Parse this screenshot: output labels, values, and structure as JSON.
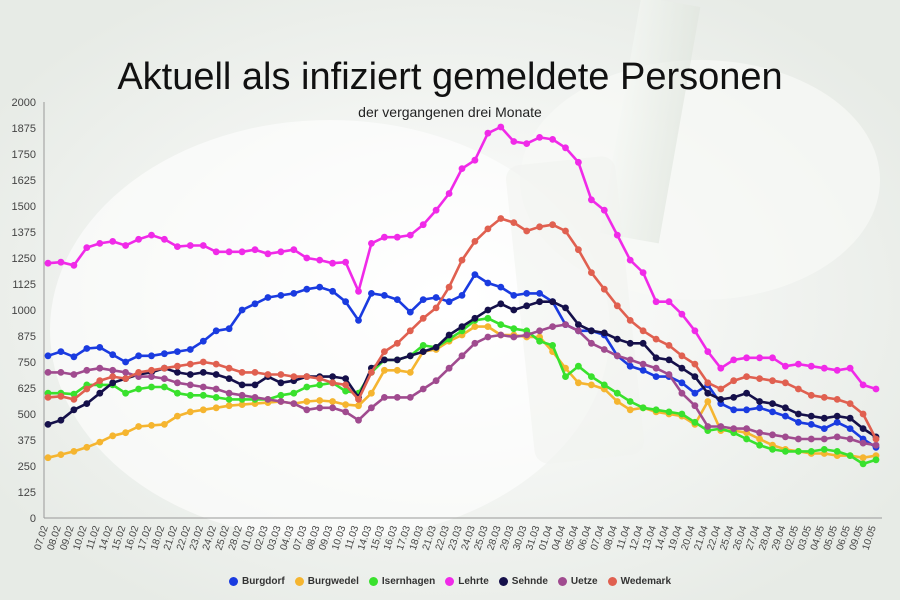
{
  "chart_data": {
    "type": "line",
    "title": "Aktuell als infiziert gemeldete Personen",
    "subtitle": "der vergangenen drei Monate",
    "xlabel": "",
    "ylabel": "",
    "ylim": [
      0,
      2000
    ],
    "yticks": [
      0,
      125,
      250,
      375,
      500,
      625,
      750,
      875,
      1000,
      1125,
      1250,
      1375,
      1500,
      1625,
      1750,
      1875,
      2000
    ],
    "grid": false,
    "legend_position": "bottom",
    "x_tick_labels": [
      "07.02",
      "08.02",
      "09.02",
      "10.02",
      "11.02",
      "14.02",
      "15.02",
      "16.02",
      "17.02",
      "18.02",
      "21.02",
      "22.02",
      "23.02",
      "24.02",
      "25.02",
      "28.02",
      "01.03",
      "02.03",
      "03.03",
      "04.03",
      "07.03",
      "08.03",
      "09.03",
      "10.03",
      "11.03",
      "14.03",
      "15.03",
      "16.03",
      "17.03",
      "18.03",
      "21.03",
      "22.03",
      "23.03",
      "24.03",
      "25.03",
      "28.03",
      "29.03",
      "30.03",
      "31.03",
      "01.04",
      "04.04",
      "05.04",
      "06.04",
      "07.04",
      "08.04",
      "11.04",
      "12.04",
      "13.04",
      "14.04",
      "19.04",
      "20.04",
      "21.04",
      "22.04",
      "25.04",
      "26.04",
      "27.04",
      "28.04",
      "29.04",
      "02.05",
      "03.05",
      "04.05",
      "05.05",
      "06.05",
      "09.05",
      "10.05"
    ],
    "series": [
      {
        "name": "Burgdorf",
        "color": "#1a3be0",
        "values": [
          780,
          800,
          775,
          815,
          820,
          785,
          750,
          780,
          780,
          790,
          800,
          810,
          850,
          900,
          910,
          1000,
          1030,
          1060,
          1070,
          1080,
          1100,
          1110,
          1090,
          1040,
          950,
          1080,
          1070,
          1050,
          990,
          1050,
          1060,
          1040,
          1070,
          1170,
          1130,
          1110,
          1070,
          1080,
          1080,
          1040,
          930,
          900,
          900,
          880,
          780,
          730,
          710,
          680,
          680,
          650,
          600,
          640,
          550,
          520,
          520,
          530,
          510,
          490,
          460,
          450,
          430,
          460,
          430,
          380,
          340
        ]
      },
      {
        "name": "Burgwedel",
        "color": "#f5b530",
        "values": [
          290,
          305,
          320,
          340,
          365,
          395,
          410,
          440,
          445,
          450,
          490,
          510,
          520,
          530,
          540,
          545,
          550,
          555,
          560,
          550,
          560,
          565,
          560,
          545,
          540,
          600,
          710,
          710,
          700,
          800,
          810,
          850,
          880,
          920,
          920,
          880,
          880,
          870,
          870,
          800,
          720,
          650,
          640,
          620,
          560,
          520,
          530,
          510,
          500,
          490,
          450,
          560,
          420,
          420,
          410,
          380,
          350,
          330,
          320,
          310,
          310,
          300,
          300,
          290,
          300
        ]
      },
      {
        "name": "Isernhagen",
        "color": "#39e12d",
        "values": [
          600,
          600,
          595,
          640,
          640,
          640,
          600,
          620,
          630,
          630,
          600,
          590,
          590,
          580,
          570,
          570,
          570,
          570,
          590,
          600,
          630,
          640,
          650,
          610,
          600,
          700,
          760,
          760,
          780,
          830,
          820,
          860,
          900,
          950,
          960,
          930,
          910,
          900,
          850,
          830,
          680,
          730,
          680,
          640,
          600,
          560,
          530,
          520,
          510,
          500,
          460,
          420,
          430,
          410,
          380,
          350,
          330,
          320,
          320,
          320,
          330,
          320,
          300,
          260,
          280
        ]
      },
      {
        "name": "Lehrte",
        "color": "#f02ae8",
        "values": [
          1225,
          1230,
          1215,
          1300,
          1320,
          1330,
          1310,
          1340,
          1360,
          1340,
          1305,
          1310,
          1310,
          1280,
          1280,
          1280,
          1290,
          1270,
          1280,
          1290,
          1250,
          1240,
          1225,
          1230,
          1090,
          1320,
          1350,
          1350,
          1360,
          1410,
          1480,
          1560,
          1680,
          1720,
          1850,
          1880,
          1810,
          1800,
          1830,
          1820,
          1780,
          1710,
          1530,
          1480,
          1360,
          1240,
          1180,
          1040,
          1040,
          980,
          900,
          800,
          720,
          760,
          770,
          770,
          770,
          730,
          740,
          730,
          720,
          710,
          720,
          640,
          620
        ]
      },
      {
        "name": "Sehnde",
        "color": "#15104a",
        "values": [
          450,
          470,
          520,
          550,
          600,
          650,
          670,
          690,
          700,
          720,
          700,
          690,
          700,
          690,
          670,
          640,
          640,
          680,
          650,
          660,
          680,
          680,
          680,
          670,
          580,
          720,
          760,
          760,
          780,
          800,
          820,
          880,
          920,
          960,
          1000,
          1030,
          1000,
          1020,
          1040,
          1040,
          1010,
          930,
          900,
          890,
          860,
          840,
          840,
          770,
          760,
          720,
          680,
          600,
          570,
          580,
          600,
          560,
          550,
          530,
          500,
          490,
          480,
          490,
          480,
          430,
          390
        ]
      },
      {
        "name": "Uetze",
        "color": "#a04b8f",
        "values": [
          700,
          700,
          690,
          710,
          720,
          710,
          700,
          680,
          680,
          670,
          650,
          640,
          630,
          620,
          600,
          590,
          580,
          570,
          560,
          550,
          520,
          530,
          530,
          510,
          470,
          530,
          580,
          580,
          580,
          620,
          660,
          720,
          780,
          840,
          870,
          880,
          870,
          880,
          900,
          920,
          930,
          900,
          840,
          810,
          780,
          760,
          740,
          720,
          690,
          600,
          540,
          440,
          440,
          430,
          430,
          410,
          400,
          390,
          380,
          380,
          380,
          390,
          380,
          360,
          350
        ]
      },
      {
        "name": "Wedemark",
        "color": "#e06050",
        "values": [
          580,
          585,
          570,
          620,
          660,
          680,
          670,
          700,
          710,
          720,
          730,
          740,
          750,
          740,
          720,
          700,
          700,
          690,
          690,
          680,
          680,
          670,
          650,
          640,
          570,
          700,
          800,
          840,
          900,
          960,
          1010,
          1110,
          1240,
          1330,
          1390,
          1440,
          1420,
          1380,
          1400,
          1410,
          1380,
          1290,
          1180,
          1100,
          1020,
          950,
          900,
          860,
          830,
          780,
          740,
          650,
          620,
          660,
          680,
          670,
          660,
          650,
          620,
          590,
          580,
          570,
          550,
          500,
          380
        ]
      }
    ]
  }
}
